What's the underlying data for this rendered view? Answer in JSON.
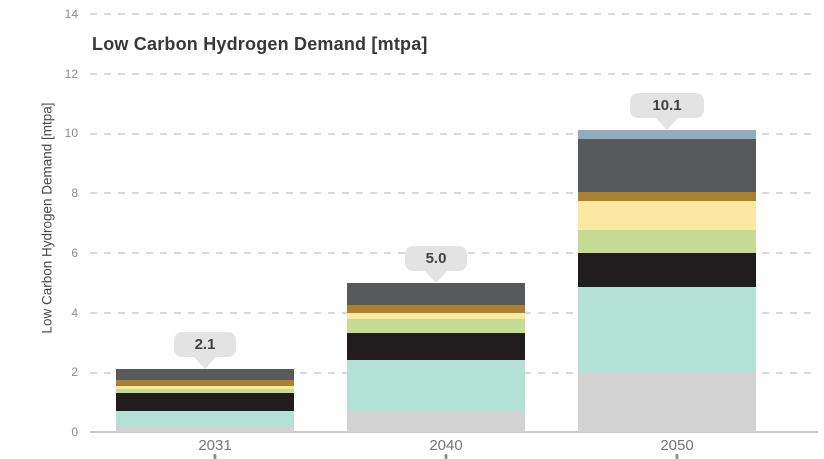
{
  "title": "Low Carbon Hydrogen Demand [mtpa]",
  "y_axis_label": "Low Carbon Hydrogen Demand [mtpa]",
  "colors": {
    "background": "#ffffff",
    "gridline": "#d9d9d9",
    "baseline": "#c9c9c9",
    "tick_label": "#8c8c8c",
    "title_text": "#383838",
    "x_label": "#757575",
    "callout_background": "#e3e3e3",
    "callout_text": "#414141"
  },
  "chart_data": {
    "type": "bar",
    "stacked": true,
    "title": "Low Carbon Hydrogen Demand [mtpa]",
    "ylabel": "Low Carbon Hydrogen Demand [mtpa]",
    "xlabel": "",
    "categories": [
      "2031",
      "2040",
      "2050"
    ],
    "totals": [
      2.1,
      5.0,
      10.1
    ],
    "total_labels": [
      "2.1",
      "5.0",
      "10.1"
    ],
    "ylim": [
      0,
      14
    ],
    "yticks": [
      0,
      2,
      4,
      6,
      8,
      10,
      12,
      14
    ],
    "grid": "horizontal-dashed",
    "legend": "none",
    "series": [
      {
        "name": "segment-light-gray",
        "color": "#d2d2d2",
        "values": [
          0.2,
          0.7,
          2.0
        ]
      },
      {
        "name": "segment-teal",
        "color": "#b4e1d5",
        "values": [
          0.5,
          1.7,
          2.85
        ]
      },
      {
        "name": "segment-black",
        "color": "#211d1e",
        "values": [
          0.6,
          0.9,
          1.15
        ]
      },
      {
        "name": "segment-green",
        "color": "#c6db93",
        "values": [
          0.15,
          0.5,
          0.75
        ]
      },
      {
        "name": "segment-yellow",
        "color": "#fbe8a2",
        "values": [
          0.1,
          0.2,
          1.0
        ]
      },
      {
        "name": "segment-brown",
        "color": "#aa8130",
        "values": [
          0.2,
          0.25,
          0.3
        ]
      },
      {
        "name": "segment-dark-gray",
        "color": "#58595b",
        "values": [
          0.35,
          0.75,
          1.75
        ]
      },
      {
        "name": "segment-blue-gray",
        "color": "#8fadbd",
        "values": [
          0,
          0,
          0.3
        ]
      }
    ]
  }
}
